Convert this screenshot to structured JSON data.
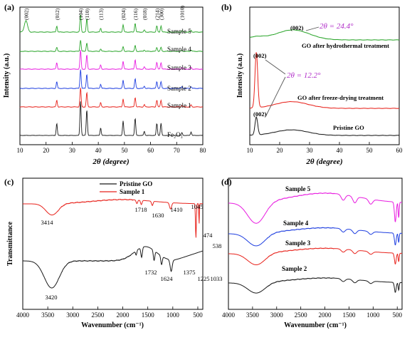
{
  "figure": {
    "colors": {
      "black": "#1a1a1a",
      "red": "#e8231c",
      "blue": "#1f3fe0",
      "magenta": "#e81ce0",
      "green": "#2aa52a",
      "purple_annot": "#b02cc8",
      "annot_gray": "#555555"
    }
  },
  "chart_data": [
    {
      "panel": "(a)",
      "type": "line",
      "xlabel": "2θ (degree)",
      "ylabel": "Intensity (a.u.)",
      "xlim": [
        10,
        80
      ],
      "xticks": [
        10,
        20,
        30,
        40,
        50,
        60,
        70,
        80
      ],
      "y_ticks_labeled": false,
      "plane_labels": [
        {
          "label": "(002)",
          "x": 12.3
        },
        {
          "label": "(012)",
          "x": 24.1
        },
        {
          "label": "(104)",
          "x": 33.2
        },
        {
          "label": "(110)",
          "x": 35.6
        },
        {
          "label": "(113)",
          "x": 40.9
        },
        {
          "label": "(024)",
          "x": 49.5
        },
        {
          "label": "(116)",
          "x": 54.1
        },
        {
          "label": "(018)",
          "x": 57.6
        },
        {
          "label": "(214)",
          "x": 62.4
        },
        {
          "label": "(300)",
          "x": 64.0
        },
        {
          "label": "(1010)",
          "x": 72.0
        }
      ],
      "peaks_hematite": [
        {
          "x": 24.1,
          "h": 0.35
        },
        {
          "x": 33.2,
          "h": 1.0
        },
        {
          "x": 35.6,
          "h": 0.75
        },
        {
          "x": 40.9,
          "h": 0.22
        },
        {
          "x": 49.5,
          "h": 0.42
        },
        {
          "x": 54.1,
          "h": 0.5
        },
        {
          "x": 57.6,
          "h": 0.12
        },
        {
          "x": 62.4,
          "h": 0.35
        },
        {
          "x": 64.0,
          "h": 0.35
        },
        {
          "x": 72.0,
          "h": 0.08
        },
        {
          "x": 75.5,
          "h": 0.1
        }
      ],
      "series": [
        {
          "name": "Sample 5",
          "color": "#2aa52a",
          "peak_scale": 0.28,
          "go_peak": 0.18
        },
        {
          "name": "Sample 4",
          "color": "#2aa52a",
          "peak_scale": 0.18,
          "go_peak": 0
        },
        {
          "name": "Sample 3",
          "color": "#e81ce0",
          "peak_scale": 0.3,
          "go_peak": 0
        },
        {
          "name": "Sample 2",
          "color": "#1f3fe0",
          "peak_scale": 0.3,
          "go_peak": 0
        },
        {
          "name": "Sample 1",
          "color": "#e8231c",
          "peak_scale": 0.3,
          "go_peak": 0
        },
        {
          "name": "Fe₂O₃",
          "color": "#1a1a1a",
          "peak_scale": 0.88,
          "go_peak": 0
        }
      ]
    },
    {
      "panel": "(b)",
      "type": "line",
      "xlabel": "2θ (degree)",
      "ylabel": "Intensity (a.u.)",
      "xlim": [
        10,
        60
      ],
      "xticks": [
        10,
        20,
        30,
        40,
        50,
        60
      ],
      "y_ticks_labeled": false,
      "series": [
        {
          "name": "GO after hydrothermal treatment",
          "color": "#2aa52a",
          "peak_x": 24.4,
          "peak_h": 0.18,
          "sharp_h": 0
        },
        {
          "name": "GO after freeze-drying treatment",
          "color": "#e8231c",
          "peak_x": 24.0,
          "peak_h": 0.12,
          "sharp_h": 1.0
        },
        {
          "name": "Pristine GO",
          "color": "#1a1a1a",
          "peak_x": 24.0,
          "peak_h": 0.1,
          "sharp_h": 0.32
        }
      ],
      "annotations": [
        {
          "text": "(002)",
          "where": "hydrothermal broad peak"
        },
        {
          "text": "2θ = 24.4°",
          "where": "hydrothermal broad peak"
        },
        {
          "text": "(002)",
          "where": "freeze-dried sharp peak"
        },
        {
          "text": "2θ = 12.2°",
          "where": "sharp peaks"
        },
        {
          "text": "(002)",
          "where": "pristine sharp peak"
        }
      ]
    },
    {
      "panel": "(c)",
      "type": "line",
      "xlabel": "Wavenumber (cm⁻¹)",
      "ylabel": "Transmittance",
      "xlim": [
        4000,
        400
      ],
      "xreversed": true,
      "xticks": [
        4000,
        3500,
        3000,
        2500,
        2000,
        1500,
        1000,
        500
      ],
      "legend": [
        "Pristine GO",
        "Sample 1"
      ],
      "series": [
        {
          "name": "Pristine GO",
          "color": "#1a1a1a",
          "bands": [
            3420,
            1732,
            1624,
            1375,
            1225,
            1033
          ]
        },
        {
          "name": "Sample 1",
          "color": "#e8231c",
          "bands": [
            3414,
            1718,
            1630,
            1410,
            1045,
            538,
            474
          ]
        }
      ],
      "band_labels": [
        "3414",
        "1718",
        "1630",
        "1410",
        "1045",
        "474",
        "538",
        "3420",
        "1732",
        "1624",
        "1375",
        "1225",
        "1033"
      ]
    },
    {
      "panel": "(d)",
      "type": "line",
      "xlabel": "Wavenumber (cm⁻¹)",
      "ylabel": "Transmittance",
      "xlim": [
        4000,
        400
      ],
      "xreversed": true,
      "xticks": [
        4000,
        3500,
        3000,
        2500,
        2000,
        1500,
        1000,
        500
      ],
      "series": [
        {
          "name": "Sample 5",
          "color": "#e81ce0"
        },
        {
          "name": "Sample 4",
          "color": "#1f3fe0"
        },
        {
          "name": "Sample 3",
          "color": "#e8231c"
        },
        {
          "name": "Sample 2",
          "color": "#1a1a1a"
        }
      ]
    }
  ]
}
